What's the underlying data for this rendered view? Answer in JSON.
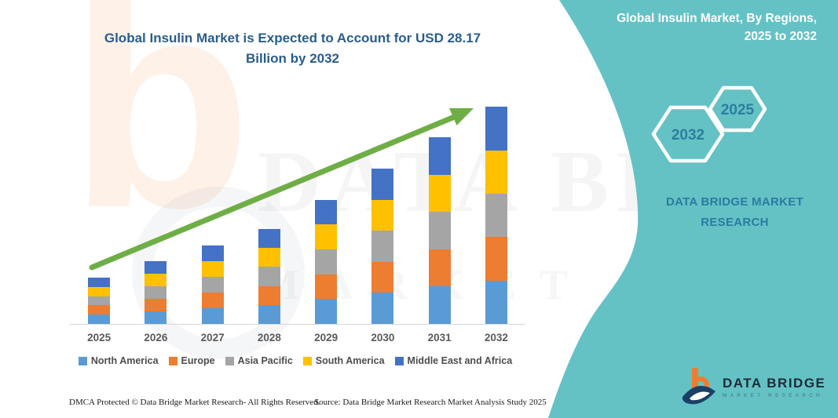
{
  "title": {
    "line1": "Global Insulin Market is Expected to Account for USD 28.17",
    "line2": "Billion by 2032"
  },
  "panel": {
    "color": "#5fc0c3",
    "title_line1": "Global Insulin Market, By Regions,",
    "title_line2": "2025 to 2032",
    "hex_back_year": "2032",
    "hex_front_year": "2025",
    "brand_line1": "DATA BRIDGE MARKET",
    "brand_line2": "RESEARCH"
  },
  "chart_data": {
    "type": "bar",
    "stacked": true,
    "title": "Global Insulin Market is Expected to Account for USD 28.17 Billion by 2032",
    "unit": "USD Billion",
    "categories": [
      "2025",
      "2026",
      "2027",
      "2028",
      "2029",
      "2030",
      "2031",
      "2032"
    ],
    "totals": [
      6.0,
      8.1,
      10.2,
      12.3,
      16.1,
      20.1,
      24.2,
      28.17
    ],
    "totals_estimated": true,
    "labeled_value": {
      "year": "2032",
      "value": 28.17
    },
    "series": [
      {
        "name": "North America",
        "color": "#5B9BD5",
        "values": [
          1.2,
          1.62,
          2.04,
          2.46,
          3.22,
          4.02,
          4.84,
          5.63
        ]
      },
      {
        "name": "Europe",
        "color": "#ED7D31",
        "values": [
          1.2,
          1.62,
          2.04,
          2.46,
          3.22,
          4.02,
          4.84,
          5.63
        ]
      },
      {
        "name": "Asia Pacific",
        "color": "#A5A5A5",
        "values": [
          1.2,
          1.62,
          2.04,
          2.46,
          3.22,
          4.02,
          4.84,
          5.63
        ]
      },
      {
        "name": "South America",
        "color": "#FFC000",
        "values": [
          1.2,
          1.62,
          2.04,
          2.46,
          3.22,
          4.02,
          4.84,
          5.63
        ]
      },
      {
        "name": "Middle East and Africa",
        "color": "#4472C4",
        "values": [
          1.2,
          1.62,
          2.04,
          2.46,
          3.22,
          4.02,
          4.84,
          5.63
        ]
      }
    ],
    "trend_arrow": {
      "present": true,
      "color": "#6FAE46"
    },
    "legend_position": "bottom",
    "grid": false,
    "ylim": [
      0,
      30
    ]
  },
  "watermark": {
    "line1": "DATA BRIDGE",
    "line2": "MARKET RESEARCH",
    "logo_glyph": "b"
  },
  "logo": {
    "name": "DATA BRIDGE",
    "sub": "MARKET RESEARCH"
  },
  "footer": {
    "dmca": "DMCA Protected © Data Bridge Market Research-  All Rights Reserved.",
    "source": "Source: Data Bridge Market Research  Market Analysis Study 2025"
  }
}
